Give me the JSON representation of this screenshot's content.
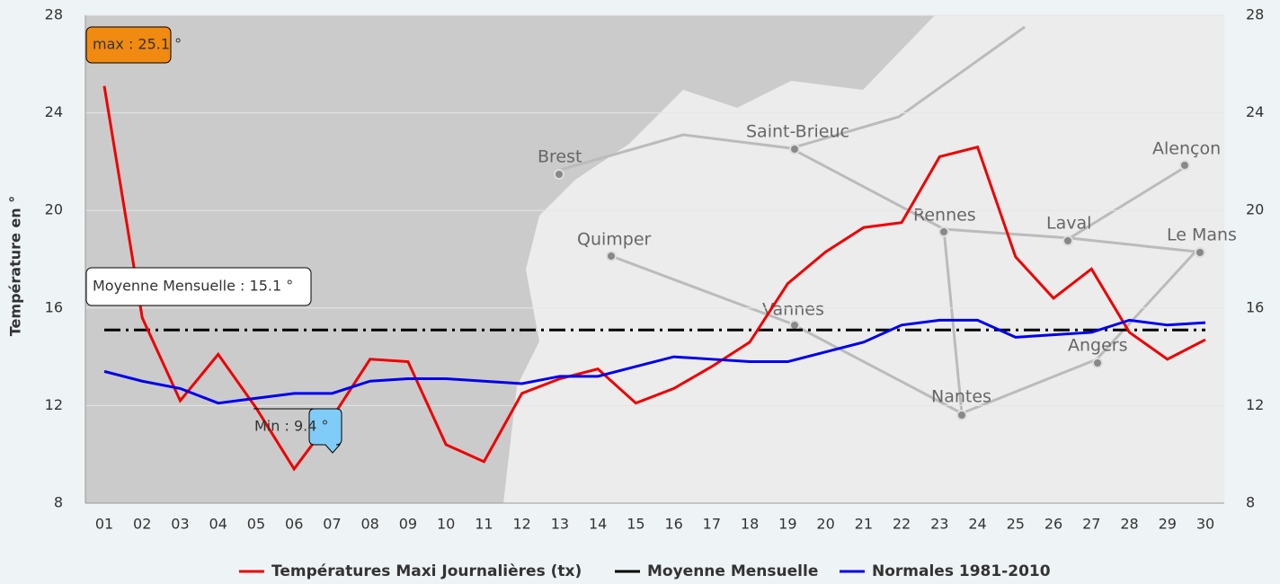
{
  "chart_data": {
    "type": "line",
    "categories": [
      "01",
      "02",
      "03",
      "04",
      "05",
      "06",
      "07",
      "08",
      "09",
      "10",
      "11",
      "12",
      "13",
      "14",
      "15",
      "16",
      "17",
      "18",
      "19",
      "20",
      "21",
      "22",
      "23",
      "24",
      "25",
      "26",
      "27",
      "28",
      "29",
      "30"
    ],
    "series": [
      {
        "name": "Températures Maxi Journalières (tx)",
        "color": "#ee0000",
        "values": [
          25.1,
          15.6,
          12.2,
          14.1,
          11.9,
          9.4,
          11.5,
          13.9,
          13.8,
          10.4,
          9.7,
          12.5,
          13.1,
          13.5,
          12.1,
          12.7,
          13.6,
          14.6,
          17.0,
          18.3,
          19.3,
          19.5,
          22.2,
          22.6,
          18.1,
          16.4,
          17.6,
          15.0,
          13.9,
          14.7
        ]
      },
      {
        "name": "Normales 1981-2010",
        "color": "#0000ee",
        "values": [
          13.4,
          13.0,
          12.7,
          12.1,
          12.3,
          12.5,
          12.5,
          13.0,
          13.1,
          13.1,
          13.0,
          12.9,
          13.2,
          13.2,
          13.6,
          14.0,
          13.9,
          13.8,
          13.8,
          14.2,
          14.6,
          15.3,
          15.5,
          15.5,
          14.8,
          14.9,
          15.0,
          15.5,
          15.3,
          15.4
        ]
      }
    ],
    "reference_line": {
      "name": "Moyenne Mensuelle",
      "value": 15.1,
      "color": "#000000"
    },
    "annotations": [
      "max : 25.1 °",
      "Moyenne Mensuelle : 15.1 °",
      "Min : 9.4 °"
    ],
    "ylabel": "Température en °",
    "ylim": [
      8,
      28
    ],
    "yticks": [
      8,
      12,
      16,
      20,
      24,
      28
    ],
    "y2lim": [
      8,
      28
    ],
    "y2ticks": [
      8,
      12,
      16,
      20,
      24,
      28
    ],
    "grid": true,
    "map_labels": [
      "Brest",
      "Saint-Brieuc",
      "Quimper",
      "Vannes",
      "Rennes",
      "Laval",
      "Alençon",
      "Le Mans",
      "Angers",
      "Nantes"
    ]
  }
}
